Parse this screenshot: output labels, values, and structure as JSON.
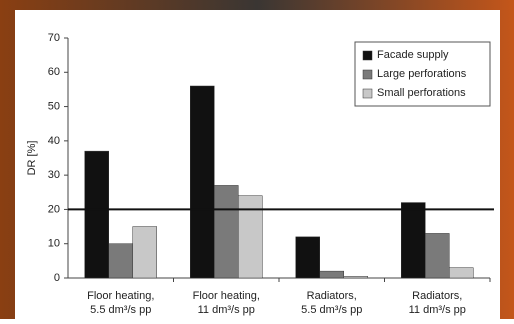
{
  "chart_data": {
    "type": "bar",
    "y_label": "DR [%]",
    "categories": [
      [
        "Floor heating,",
        "5.5 dm³/s pp"
      ],
      [
        "Floor heating,",
        "11 dm³/s pp"
      ],
      [
        "Radiators,",
        "5.5 dm³/s pp"
      ],
      [
        "Radiators,",
        "11 dm³/s pp"
      ]
    ],
    "series": [
      {
        "name": "Facade supply",
        "color": "#111111",
        "values": [
          37,
          56,
          12,
          22
        ]
      },
      {
        "name": "Large perforations",
        "color": "#7a7a7a",
        "values": [
          10,
          27,
          2,
          13
        ]
      },
      {
        "name": "Small perforations",
        "color": "#c8c8c8",
        "values": [
          15,
          24,
          0.5,
          3
        ]
      }
    ],
    "reference_line": 20,
    "ylim": [
      0,
      70
    ],
    "yticks": [
      0,
      10,
      20,
      30,
      40,
      50,
      60,
      70
    ],
    "legend": "top-right"
  }
}
